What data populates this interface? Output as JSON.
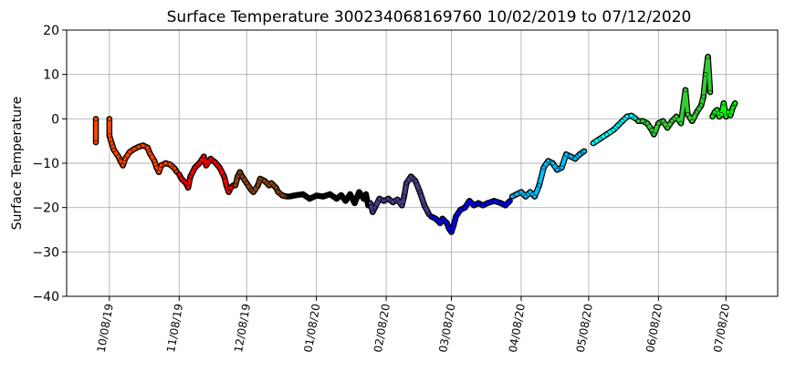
{
  "chart_data": {
    "type": "scatter",
    "title": "Surface Temperature 300234068169760  10/02/2019 to 07/12/2020",
    "xlabel": "",
    "ylabel": "Surface Temperature",
    "x_axis": "date",
    "xlim": [
      "2019-09-19",
      "2020-07-31"
    ],
    "ylim": [
      -40,
      20
    ],
    "yticks": [
      -40,
      -30,
      -20,
      -10,
      0,
      10,
      20
    ],
    "xticks": [
      {
        "date": "2019-10-08",
        "label": "10/08/19"
      },
      {
        "date": "2019-11-08",
        "label": "11/08/19"
      },
      {
        "date": "2019-12-08",
        "label": "12/08/19"
      },
      {
        "date": "2020-01-08",
        "label": "01/08/20"
      },
      {
        "date": "2020-02-08",
        "label": "02/08/20"
      },
      {
        "date": "2020-03-08",
        "label": "03/08/20"
      },
      {
        "date": "2020-04-08",
        "label": "04/08/20"
      },
      {
        "date": "2020-05-08",
        "label": "05/08/20"
      },
      {
        "date": "2020-06-08",
        "label": "06/08/20"
      },
      {
        "date": "2020-07-08",
        "label": "07/08/20"
      }
    ],
    "grid": true,
    "legend": "none",
    "series": [
      {
        "color": "#ff4500",
        "points": [
          [
            "2019-10-02",
            0.0
          ],
          [
            "2019-10-02",
            -5.3
          ],
          [
            "2019-10-08",
            0.0
          ],
          [
            "2019-10-08",
            -3.8
          ],
          [
            "2019-10-09",
            -5.5
          ],
          [
            "2019-10-10",
            -7.0
          ],
          [
            "2019-10-12",
            -8.5
          ],
          [
            "2019-10-13",
            -9.6
          ],
          [
            "2019-10-14",
            -10.5
          ],
          [
            "2019-10-15",
            -9.0
          ],
          [
            "2019-10-17",
            -7.5
          ],
          [
            "2019-10-19",
            -6.8
          ],
          [
            "2019-10-21",
            -6.3
          ],
          [
            "2019-10-23",
            -6.0
          ],
          [
            "2019-10-25",
            -6.5
          ],
          [
            "2019-10-26",
            -7.8
          ],
          [
            "2019-10-28",
            -9.5
          ],
          [
            "2019-10-29",
            -11.0
          ],
          [
            "2019-10-30",
            -12.0
          ],
          [
            "2019-10-31",
            -10.5
          ],
          [
            "2019-11-02",
            -10.0
          ],
          [
            "2019-11-04",
            -10.3
          ],
          [
            "2019-11-06",
            -11.2
          ],
          [
            "2019-11-07",
            -12.0
          ]
        ]
      },
      {
        "color": "#ff0000",
        "points": [
          [
            "2019-11-08",
            -12.5
          ],
          [
            "2019-11-09",
            -13.5
          ],
          [
            "2019-11-11",
            -14.5
          ],
          [
            "2019-11-12",
            -15.5
          ],
          [
            "2019-11-13",
            -13.0
          ],
          [
            "2019-11-15",
            -11.0
          ],
          [
            "2019-11-17",
            -10.0
          ],
          [
            "2019-11-19",
            -8.5
          ],
          [
            "2019-11-20",
            -10.5
          ],
          [
            "2019-11-22",
            -9.0
          ],
          [
            "2019-11-24",
            -9.8
          ],
          [
            "2019-11-26",
            -11.0
          ],
          [
            "2019-11-28",
            -13.0
          ],
          [
            "2019-11-29",
            -15.0
          ],
          [
            "2019-11-30",
            -16.5
          ],
          [
            "2019-12-01",
            -15.5
          ],
          [
            "2019-12-02",
            -15.0
          ]
        ]
      },
      {
        "color": "#8b4513",
        "points": [
          [
            "2019-12-03",
            -15.0
          ],
          [
            "2019-12-04",
            -13.0
          ],
          [
            "2019-12-05",
            -12.0
          ],
          [
            "2019-12-06",
            -13.0
          ],
          [
            "2019-12-08",
            -14.5
          ],
          [
            "2019-12-10",
            -16.0
          ],
          [
            "2019-12-11",
            -16.5
          ],
          [
            "2019-12-13",
            -15.0
          ],
          [
            "2019-12-14",
            -13.5
          ],
          [
            "2019-12-16",
            -14.0
          ],
          [
            "2019-12-18",
            -15.0
          ],
          [
            "2019-12-19",
            -14.5
          ],
          [
            "2019-12-21",
            -15.5
          ],
          [
            "2019-12-22",
            -16.5
          ],
          [
            "2019-12-24",
            -17.3
          ],
          [
            "2019-12-26",
            -17.5
          ]
        ]
      },
      {
        "color": "#000000",
        "points": [
          [
            "2019-12-27",
            -17.5
          ],
          [
            "2019-12-30",
            -17.2
          ],
          [
            "2020-01-02",
            -17.0
          ],
          [
            "2020-01-05",
            -18.0
          ],
          [
            "2020-01-08",
            -17.3
          ],
          [
            "2020-01-11",
            -17.5
          ],
          [
            "2020-01-14",
            -17.0
          ],
          [
            "2020-01-17",
            -18.0
          ],
          [
            "2020-01-19",
            -17.2
          ],
          [
            "2020-01-21",
            -18.5
          ],
          [
            "2020-01-23",
            -17.0
          ],
          [
            "2020-01-25",
            -19.0
          ],
          [
            "2020-01-27",
            -16.5
          ],
          [
            "2020-01-29",
            -18.0
          ],
          [
            "2020-01-30",
            -17.0
          ],
          [
            "2020-01-31",
            -19.5
          ]
        ]
      },
      {
        "color": "#483d8b",
        "points": [
          [
            "2020-02-01",
            -19.0
          ],
          [
            "2020-02-02",
            -21.0
          ],
          [
            "2020-02-03",
            -20.0
          ],
          [
            "2020-02-05",
            -18.0
          ],
          [
            "2020-02-07",
            -18.5
          ],
          [
            "2020-02-09",
            -18.0
          ],
          [
            "2020-02-11",
            -18.8
          ],
          [
            "2020-02-13",
            -18.2
          ],
          [
            "2020-02-15",
            -19.5
          ],
          [
            "2020-02-16",
            -17.5
          ],
          [
            "2020-02-17",
            -14.5
          ],
          [
            "2020-02-19",
            -13.0
          ],
          [
            "2020-02-21",
            -14.0
          ],
          [
            "2020-02-23",
            -16.5
          ],
          [
            "2020-02-25",
            -19.5
          ],
          [
            "2020-02-27",
            -21.5
          ]
        ]
      },
      {
        "color": "#0000ff",
        "points": [
          [
            "2020-02-28",
            -22.0
          ],
          [
            "2020-03-01",
            -22.5
          ],
          [
            "2020-03-03",
            -23.5
          ],
          [
            "2020-03-04",
            -22.5
          ],
          [
            "2020-03-06",
            -23.5
          ],
          [
            "2020-03-07",
            -24.8
          ],
          [
            "2020-03-08",
            -25.5
          ],
          [
            "2020-03-09",
            -24.0
          ],
          [
            "2020-03-10",
            -22.0
          ],
          [
            "2020-03-12",
            -20.5
          ],
          [
            "2020-03-14",
            -20.0
          ],
          [
            "2020-03-16",
            -18.5
          ],
          [
            "2020-03-18",
            -19.5
          ],
          [
            "2020-03-20",
            -19.0
          ],
          [
            "2020-03-22",
            -19.5
          ],
          [
            "2020-03-24",
            -19.0
          ],
          [
            "2020-03-27",
            -18.5
          ],
          [
            "2020-03-30",
            -19.0
          ],
          [
            "2020-04-01",
            -19.5
          ],
          [
            "2020-04-03",
            -18.5
          ]
        ]
      },
      {
        "color": "#00bfff",
        "points": [
          [
            "2020-04-04",
            -17.5
          ],
          [
            "2020-04-06",
            -17.0
          ],
          [
            "2020-04-08",
            -16.5
          ],
          [
            "2020-04-10",
            -17.5
          ],
          [
            "2020-04-12",
            -16.5
          ],
          [
            "2020-04-14",
            -17.5
          ],
          [
            "2020-04-16",
            -15.0
          ],
          [
            "2020-04-18",
            -11.0
          ],
          [
            "2020-04-20",
            -9.5
          ],
          [
            "2020-04-22",
            -10.0
          ],
          [
            "2020-04-24",
            -11.5
          ],
          [
            "2020-04-26",
            -11.0
          ],
          [
            "2020-04-28",
            -8.0
          ],
          [
            "2020-04-30",
            -8.5
          ],
          [
            "2020-05-02",
            -9.0
          ],
          [
            "2020-05-04",
            -8.0
          ],
          [
            "2020-05-06",
            -7.3
          ]
        ]
      },
      {
        "color": "#00ffff",
        "points": [
          [
            "2020-05-10",
            -5.5
          ],
          [
            "2020-05-13",
            -4.5
          ],
          [
            "2020-05-16",
            -3.5
          ],
          [
            "2020-05-19",
            -2.5
          ],
          [
            "2020-05-21",
            -1.5
          ],
          [
            "2020-05-23",
            -0.5
          ],
          [
            "2020-05-25",
            0.5
          ],
          [
            "2020-05-27",
            0.7
          ],
          [
            "2020-05-29",
            0.0
          ]
        ]
      },
      {
        "color": "#32cd32",
        "points": [
          [
            "2020-05-30",
            -0.5
          ],
          [
            "2020-06-01",
            -0.5
          ],
          [
            "2020-06-03",
            -1.0
          ],
          [
            "2020-06-05",
            -2.5
          ],
          [
            "2020-06-06",
            -3.5
          ],
          [
            "2020-06-08",
            -1.0
          ],
          [
            "2020-06-10",
            -0.5
          ],
          [
            "2020-06-12",
            -2.0
          ],
          [
            "2020-06-14",
            -0.5
          ],
          [
            "2020-06-16",
            0.5
          ],
          [
            "2020-06-18",
            -1.0
          ],
          [
            "2020-06-20",
            6.5
          ],
          [
            "2020-06-21",
            1.0
          ],
          [
            "2020-06-23",
            -0.5
          ],
          [
            "2020-06-25",
            1.5
          ],
          [
            "2020-06-27",
            3.0
          ],
          [
            "2020-06-28",
            5.0
          ],
          [
            "2020-06-29",
            10.0
          ],
          [
            "2020-06-30",
            14.0
          ],
          [
            "2020-07-01",
            6.0
          ]
        ]
      },
      {
        "color": "#00ff00",
        "points": [
          [
            "2020-07-02",
            0.5
          ],
          [
            "2020-07-03",
            1.5
          ],
          [
            "2020-07-04",
            2.0
          ],
          [
            "2020-07-05",
            0.5
          ],
          [
            "2020-07-06",
            1.0
          ],
          [
            "2020-07-07",
            3.5
          ],
          [
            "2020-07-08",
            0.5
          ],
          [
            "2020-07-09",
            1.5
          ],
          [
            "2020-07-10",
            0.8
          ],
          [
            "2020-07-11",
            2.5
          ],
          [
            "2020-07-12",
            3.5
          ]
        ]
      }
    ]
  }
}
